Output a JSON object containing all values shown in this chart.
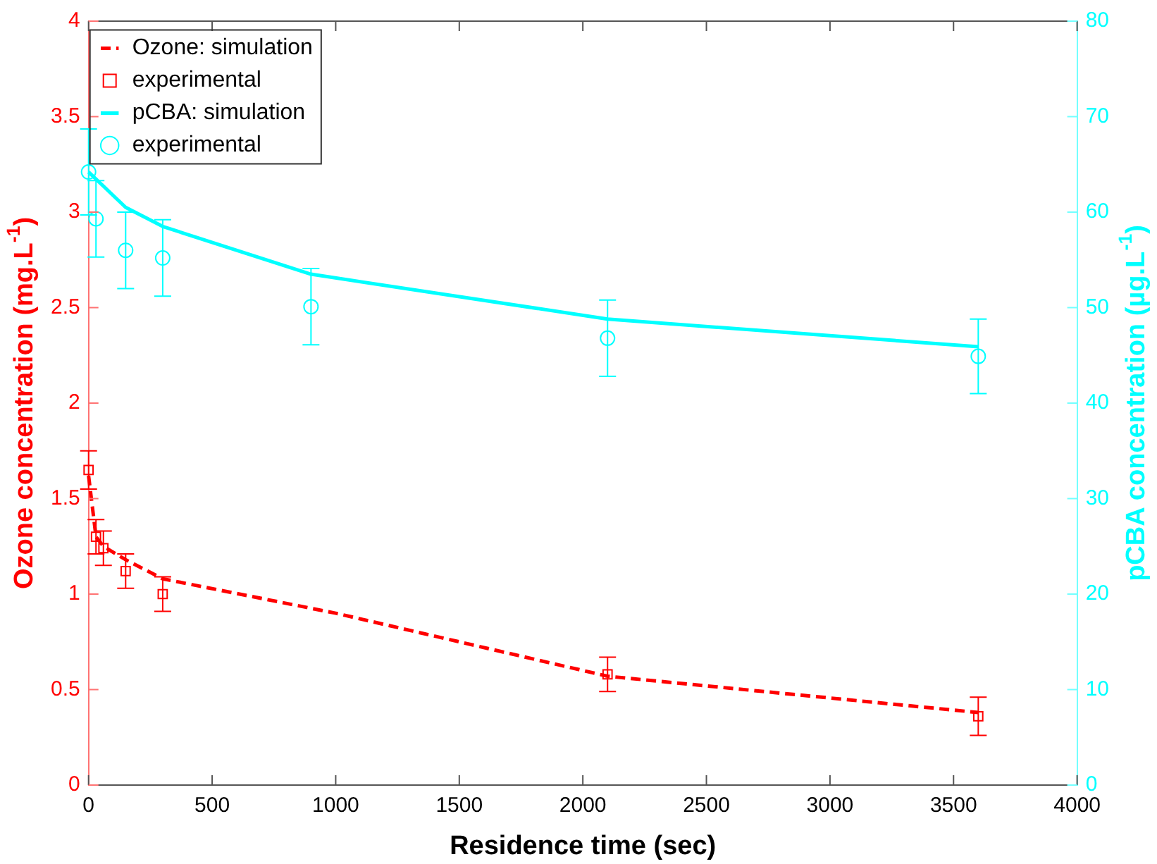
{
  "chart_data": {
    "type": "line",
    "xlabel": "Residence time (sec)",
    "ylabel": "Ozone concentration (mg.L$^{-1}$)",
    "y2label": "pCBA concentration (µg.L$^{-1}$)",
    "xlim": [
      0,
      4000
    ],
    "xticks": [
      0,
      500,
      1000,
      1500,
      2000,
      2500,
      3000,
      3500,
      4000
    ],
    "ylim": [
      0,
      4
    ],
    "yticks": [
      0,
      0.5,
      1,
      1.5,
      2,
      2.5,
      3,
      3.5,
      4
    ],
    "y2lim": [
      0,
      80
    ],
    "y2ticks": [
      0,
      10,
      20,
      30,
      40,
      50,
      60,
      70,
      80
    ],
    "grid": false,
    "legend": "top left",
    "series": [
      {
        "name": "Ozone: simulation",
        "type": "line",
        "color": "#ff0000",
        "line_style": "dashed",
        "marker": "none",
        "x": [
          0,
          30,
          60,
          150,
          300,
          1000,
          2100,
          3600
        ],
        "values": [
          1.62,
          1.3,
          1.25,
          1.18,
          1.08,
          0.9,
          0.57,
          0.38
        ]
      },
      {
        "name": "experimental",
        "type": "scatter",
        "color": "#ff0000",
        "marker": "square",
        "x": [
          0,
          30,
          60,
          150,
          300,
          2100,
          3600
        ],
        "values": [
          1.65,
          1.3,
          1.24,
          1.12,
          1.0,
          0.58,
          0.36
        ],
        "errors": [
          0.1,
          0.09,
          0.09,
          0.09,
          0.09,
          0.09,
          0.1
        ]
      },
      {
        "name": "pCBA: simulation",
        "type": "line",
        "color": "#00ffff",
        "line_style": "solid",
        "marker": "none",
        "axis": "y2",
        "x": [
          0,
          150,
          300,
          900,
          2100,
          3600
        ],
        "values": [
          64.2,
          60.5,
          58.5,
          53.5,
          48.8,
          45.9
        ]
      },
      {
        "name": "experimental",
        "type": "scatter",
        "color": "#00ffff",
        "marker": "circle",
        "axis": "y2",
        "x": [
          0,
          30,
          150,
          300,
          900,
          2100,
          3600
        ],
        "values": [
          64.2,
          59.3,
          56,
          55.2,
          50.1,
          46.8,
          44.9
        ],
        "errors": [
          4.5,
          4,
          4,
          4,
          4,
          4,
          3.9
        ]
      }
    ]
  }
}
